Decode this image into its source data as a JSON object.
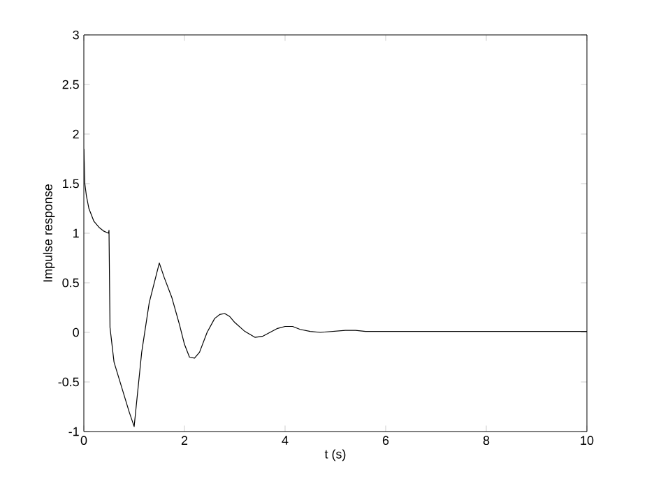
{
  "chart_data": {
    "type": "line",
    "xlabel": "t (s)",
    "ylabel": "Impulse response",
    "xlim": [
      0,
      10
    ],
    "ylim": [
      -1,
      3
    ],
    "xticks": [
      0,
      2,
      4,
      6,
      8,
      10
    ],
    "yticks": [
      -1,
      -0.5,
      0,
      0.5,
      1,
      1.5,
      2,
      2.5,
      3
    ],
    "marker": "none",
    "line_style": "solid",
    "series": [
      {
        "color": "#000000",
        "x": [
          0,
          0.02,
          0.05,
          0.1,
          0.2,
          0.3,
          0.4,
          0.49,
          0.5,
          0.52,
          0.6,
          0.75,
          0.9,
          1.0,
          1.15,
          1.3,
          1.5,
          1.6,
          1.75,
          1.9,
          2.0,
          2.1,
          2.2,
          2.3,
          2.45,
          2.6,
          2.7,
          2.8,
          2.9,
          3.0,
          3.2,
          3.4,
          3.55,
          3.7,
          3.85,
          4.0,
          4.15,
          4.3,
          4.5,
          4.7,
          4.95,
          5.2,
          5.4,
          5.6,
          6,
          7,
          8,
          9,
          10
        ],
        "values": [
          1.85,
          1.5,
          1.38,
          1.25,
          1.12,
          1.06,
          1.02,
          1.0,
          1.03,
          0.05,
          -0.3,
          -0.55,
          -0.8,
          -0.95,
          -0.2,
          0.3,
          0.7,
          0.55,
          0.35,
          0.08,
          -0.12,
          -0.25,
          -0.26,
          -0.2,
          0,
          0.14,
          0.18,
          0.19,
          0.16,
          0.1,
          0.01,
          -0.05,
          -0.04,
          0,
          0.04,
          0.06,
          0.06,
          0.03,
          0.01,
          0,
          0.01,
          0.02,
          0.02,
          0.01,
          0.01,
          0.01,
          0.01,
          0.01,
          0.01
        ]
      }
    ]
  }
}
